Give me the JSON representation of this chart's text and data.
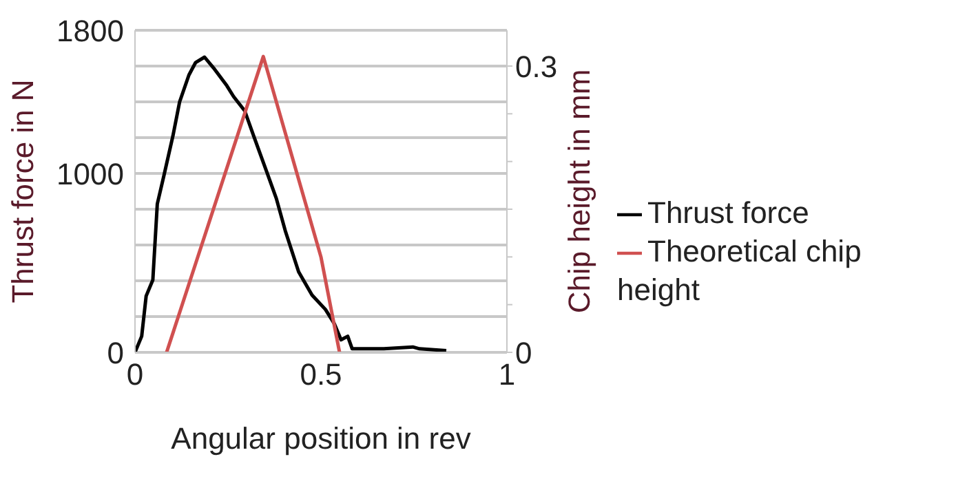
{
  "chart_data": {
    "type": "line",
    "xlabel": "Angular position in rev",
    "ylabel": "Thrust force in N",
    "y2label": "Chip height in mm",
    "xlim": [
      0,
      1
    ],
    "xticks": [
      0,
      0.5,
      1
    ],
    "ylim": [
      0,
      1800
    ],
    "yticks": [
      0,
      {
        "value": 200,
        "label": null
      },
      {
        "value": 400,
        "label": null
      },
      {
        "value": 600,
        "label": null
      },
      {
        "value": 800,
        "label": null
      },
      1000,
      {
        "value": 1200,
        "label": null
      },
      {
        "value": 1400,
        "label": null
      },
      {
        "value": 1600,
        "label": null
      },
      1800
    ],
    "y2lim": [
      0,
      0.3375
    ],
    "y2ticks": [
      0,
      {
        "value": 0.05,
        "label": null
      },
      {
        "value": 0.1,
        "label": null
      },
      {
        "value": 0.15,
        "label": null
      },
      {
        "value": 0.2,
        "label": null
      },
      {
        "value": 0.25,
        "label": null
      },
      0.3
    ],
    "grid": "y",
    "legend": "right",
    "marker": "none",
    "series": [
      {
        "name": "Thrust force",
        "color": "#000000",
        "x": [
          0,
          0.018,
          0.03,
          0.048,
          0.06,
          0.078,
          0.102,
          0.12,
          0.145,
          0.163,
          0.187,
          0.211,
          0.247,
          0.265,
          0.295,
          0.319,
          0.361,
          0.38,
          0.404,
          0.44,
          0.476,
          0.512,
          0.536,
          0.554,
          0.572,
          0.584,
          0.669,
          0.747,
          0.765,
          0.837
        ],
        "values": [
          0,
          90,
          315,
          405,
          830,
          990,
          1210,
          1400,
          1550,
          1620,
          1650,
          1590,
          1490,
          1430,
          1350,
          1210,
          970,
          860,
          680,
          450,
          320,
          240,
          160,
          70,
          90,
          20,
          20,
          30,
          20,
          10
        ]
      },
      {
        "name": "Theoretical chip height",
        "color": "#d05050",
        "axis": "y2",
        "x": [
          0.085,
          0.345,
          0.5,
          0.55
        ],
        "values": [
          0,
          0.31,
          0.1,
          0
        ]
      }
    ]
  }
}
